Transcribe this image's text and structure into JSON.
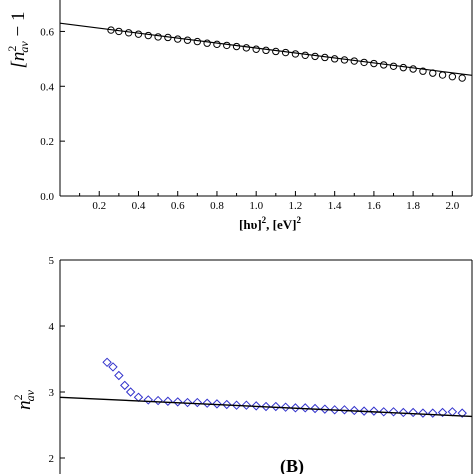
{
  "chart_data": [
    {
      "type": "scatter",
      "title": "",
      "xlabel": "[hυ]², [eV]²",
      "xlabel_parts": [
        "[hυ]",
        "2",
        ", [eV]",
        "2"
      ],
      "ylabel_parts": [
        "[n",
        "2",
        "av",
        " − 1"
      ],
      "xlim": [
        0.0,
        2.1
      ],
      "ylim": [
        0.0,
        0.7
      ],
      "xticks": [
        "0.2",
        "0.4",
        "0.6",
        "0.8",
        "1.0",
        "1.2",
        "1.4",
        "1.6",
        "1.8",
        "2.0"
      ],
      "yticks": [
        "0.0",
        "0.2",
        "0.4",
        "0.6"
      ],
      "marker_color": "#000000",
      "grid": false,
      "series": [
        {
          "kind": "points",
          "x": [
            0.26,
            0.3,
            0.35,
            0.4,
            0.45,
            0.5,
            0.55,
            0.6,
            0.65,
            0.7,
            0.75,
            0.8,
            0.85,
            0.9,
            0.95,
            1.0,
            1.05,
            1.1,
            1.15,
            1.2,
            1.25,
            1.3,
            1.35,
            1.4,
            1.45,
            1.5,
            1.55,
            1.6,
            1.65,
            1.7,
            1.75,
            1.8,
            1.85,
            1.9,
            1.95,
            2.0,
            2.05
          ],
          "y": [
            0.605,
            0.6,
            0.595,
            0.59,
            0.585,
            0.58,
            0.578,
            0.572,
            0.568,
            0.563,
            0.557,
            0.553,
            0.549,
            0.545,
            0.54,
            0.535,
            0.531,
            0.527,
            0.523,
            0.518,
            0.513,
            0.509,
            0.505,
            0.5,
            0.496,
            0.492,
            0.487,
            0.483,
            0.478,
            0.473,
            0.468,
            0.463,
            0.455,
            0.448,
            0.441,
            0.435,
            0.43
          ]
        },
        {
          "kind": "fit",
          "x": [
            0.0,
            2.1
          ],
          "y": [
            0.63,
            0.44
          ]
        }
      ]
    },
    {
      "type": "scatter",
      "title": "",
      "annotation": "(B)",
      "ylabel_parts": [
        "n",
        "2",
        "av"
      ],
      "xlim": [
        0.0,
        2.1
      ],
      "ylim": [
        2.0,
        5.0
      ],
      "yticks": [
        "2",
        "3",
        "4",
        "5"
      ],
      "marker_color": "#3333cc",
      "grid": false,
      "series": [
        {
          "kind": "points",
          "x": [
            0.24,
            0.27,
            0.3,
            0.33,
            0.36,
            0.4,
            0.45,
            0.5,
            0.55,
            0.6,
            0.65,
            0.7,
            0.75,
            0.8,
            0.85,
            0.9,
            0.95,
            1.0,
            1.05,
            1.1,
            1.15,
            1.2,
            1.25,
            1.3,
            1.35,
            1.4,
            1.45,
            1.5,
            1.55,
            1.6,
            1.65,
            1.7,
            1.75,
            1.8,
            1.85,
            1.9,
            1.95,
            2.0,
            2.05
          ],
          "y": [
            3.45,
            3.38,
            3.25,
            3.1,
            3.0,
            2.92,
            2.88,
            2.87,
            2.86,
            2.85,
            2.84,
            2.84,
            2.83,
            2.82,
            2.81,
            2.8,
            2.8,
            2.79,
            2.78,
            2.78,
            2.77,
            2.76,
            2.76,
            2.75,
            2.74,
            2.73,
            2.73,
            2.72,
            2.71,
            2.71,
            2.7,
            2.7,
            2.69,
            2.69,
            2.68,
            2.68,
            2.69,
            2.7,
            2.68
          ]
        },
        {
          "kind": "fit",
          "x": [
            0.0,
            2.1
          ],
          "y": [
            2.92,
            2.63
          ]
        }
      ]
    }
  ]
}
